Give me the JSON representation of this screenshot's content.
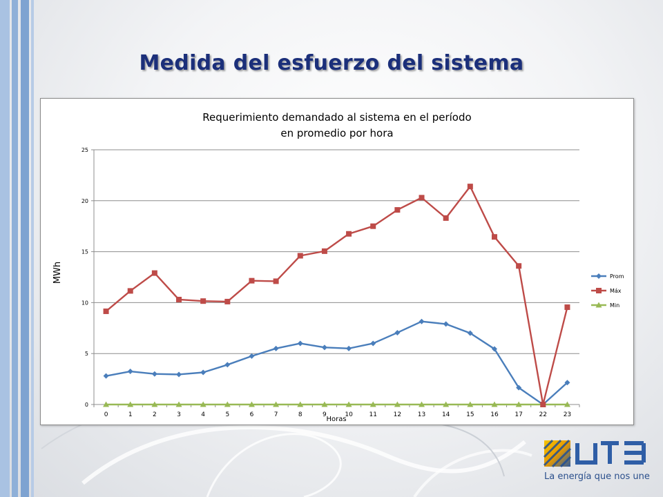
{
  "slide": {
    "title": "Medida del esfuerzo del sistema"
  },
  "logo": {
    "wordmark": "UTE",
    "tagline": "La energía que nos une"
  },
  "colors": {
    "title": "#1b2f7a",
    "prom": "#4a7ebb",
    "max": "#be4b48",
    "min": "#98b954",
    "stripe": "#8fb0d8"
  },
  "chart_data": {
    "type": "line",
    "title": [
      "Requerimiento demandado al sistema en el período",
      "en promedio  por hora"
    ],
    "xlabel": "Horas",
    "ylabel": "MWh",
    "categories": [
      "0",
      "1",
      "2",
      "3",
      "4",
      "5",
      "6",
      "7",
      "8",
      "9",
      "10",
      "11",
      "12",
      "13",
      "14",
      "15",
      "16",
      "17",
      "22",
      "23"
    ],
    "ylim": [
      0,
      25
    ],
    "yticks": [
      0,
      5,
      10,
      15,
      20,
      25
    ],
    "grid": true,
    "legend_position": "right",
    "series": [
      {
        "name": "Prom",
        "marker": "diamond",
        "color": "#4a7ebb",
        "values": [
          2.8,
          3.25,
          3.0,
          2.95,
          3.15,
          3.9,
          4.75,
          5.5,
          6.0,
          5.6,
          5.5,
          6.0,
          7.05,
          8.15,
          7.9,
          7.0,
          5.45,
          1.65,
          0.0,
          2.15
        ]
      },
      {
        "name": "Máx",
        "marker": "square",
        "color": "#be4b48",
        "values": [
          9.15,
          11.15,
          12.9,
          10.3,
          10.15,
          10.1,
          12.15,
          12.1,
          14.6,
          15.05,
          16.75,
          17.5,
          19.1,
          20.3,
          18.3,
          21.4,
          16.45,
          13.6,
          0.0,
          9.55
        ]
      },
      {
        "name": "Min",
        "marker": "triangle",
        "color": "#98b954",
        "values": [
          0,
          0,
          0,
          0,
          0,
          0,
          0,
          0,
          0,
          0,
          0,
          0,
          0,
          0,
          0,
          0,
          0,
          0,
          0,
          0
        ]
      }
    ]
  }
}
